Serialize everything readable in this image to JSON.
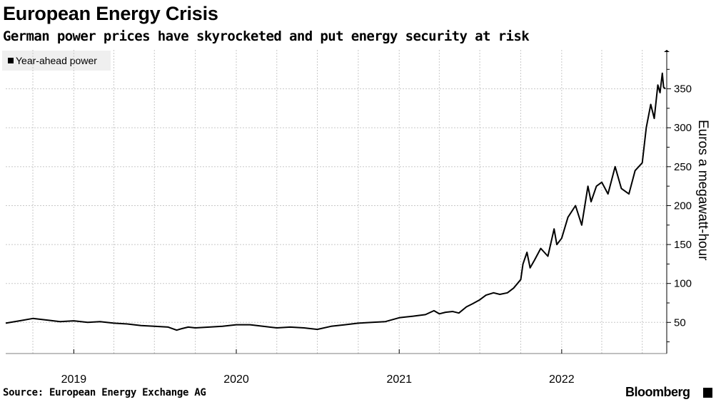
{
  "title": "European Energy Crisis",
  "subtitle": "German power prices have skyrocketed and put energy security at risk",
  "source": "Source: European Energy Exchange AG",
  "brand": "Bloomberg",
  "colors": {
    "line": "#000000",
    "grid": "#c8c8c8",
    "legend_bg": "#efefef"
  },
  "chart_data": {
    "type": "line",
    "title": "European Energy Crisis",
    "subtitle": "German power prices have skyrocketed and put energy security at risk",
    "ylabel": "Euros a megawatt-hour",
    "xlabel": "",
    "yticks": [
      50,
      100,
      150,
      200,
      250,
      300,
      350
    ],
    "ylim": [
      10,
      400
    ],
    "xlim": [
      "2018-08-01",
      "2022-08-25"
    ],
    "xticks": [
      {
        "label": "2019",
        "date": "2019-01-01"
      },
      {
        "label": "2020",
        "date": "2020-01-01"
      },
      {
        "label": "2021",
        "date": "2021-01-01"
      },
      {
        "label": "2022",
        "date": "2022-01-01"
      }
    ],
    "grid": true,
    "legend_position": "top-left",
    "series": [
      {
        "name": "Year-ahead power",
        "x": [
          "2018-08-01",
          "2018-09-01",
          "2018-10-01",
          "2018-11-01",
          "2018-12-01",
          "2019-01-01",
          "2019-02-01",
          "2019-03-01",
          "2019-04-01",
          "2019-05-01",
          "2019-06-01",
          "2019-07-01",
          "2019-08-01",
          "2019-08-20",
          "2019-09-01",
          "2019-09-15",
          "2019-10-01",
          "2019-11-01",
          "2019-12-01",
          "2020-01-01",
          "2020-02-01",
          "2020-03-01",
          "2020-04-01",
          "2020-05-01",
          "2020-06-01",
          "2020-07-01",
          "2020-08-01",
          "2020-09-01",
          "2020-10-01",
          "2020-11-01",
          "2020-12-01",
          "2021-01-01",
          "2021-01-15",
          "2021-02-01",
          "2021-03-01",
          "2021-03-20",
          "2021-04-01",
          "2021-04-15",
          "2021-05-01",
          "2021-05-15",
          "2021-06-01",
          "2021-06-15",
          "2021-07-01",
          "2021-07-15",
          "2021-08-01",
          "2021-08-15",
          "2021-09-01",
          "2021-09-15",
          "2021-10-01",
          "2021-10-06",
          "2021-10-15",
          "2021-10-22",
          "2021-11-01",
          "2021-11-15",
          "2021-12-01",
          "2021-12-15",
          "2021-12-21",
          "2022-01-01",
          "2022-01-15",
          "2022-02-01",
          "2022-02-15",
          "2022-03-01",
          "2022-03-08",
          "2022-03-20",
          "2022-04-01",
          "2022-04-15",
          "2022-05-01",
          "2022-05-15",
          "2022-06-01",
          "2022-06-15",
          "2022-07-01",
          "2022-07-10",
          "2022-07-20",
          "2022-07-28",
          "2022-08-05",
          "2022-08-10",
          "2022-08-15",
          "2022-08-18",
          "2022-08-22"
        ],
        "values": [
          49,
          52,
          55,
          53,
          51,
          52,
          50,
          51,
          49,
          48,
          46,
          45,
          44,
          40,
          42,
          44,
          43,
          44,
          45,
          47,
          47,
          45,
          43,
          44,
          43,
          41,
          45,
          47,
          49,
          50,
          51,
          56,
          57,
          58,
          60,
          65,
          61,
          63,
          64,
          62,
          70,
          74,
          79,
          85,
          88,
          86,
          88,
          94,
          105,
          125,
          140,
          120,
          130,
          145,
          135,
          170,
          150,
          158,
          185,
          200,
          175,
          225,
          205,
          225,
          230,
          215,
          250,
          222,
          215,
          245,
          255,
          300,
          330,
          312,
          355,
          345,
          370,
          352,
          350
        ]
      }
    ]
  }
}
